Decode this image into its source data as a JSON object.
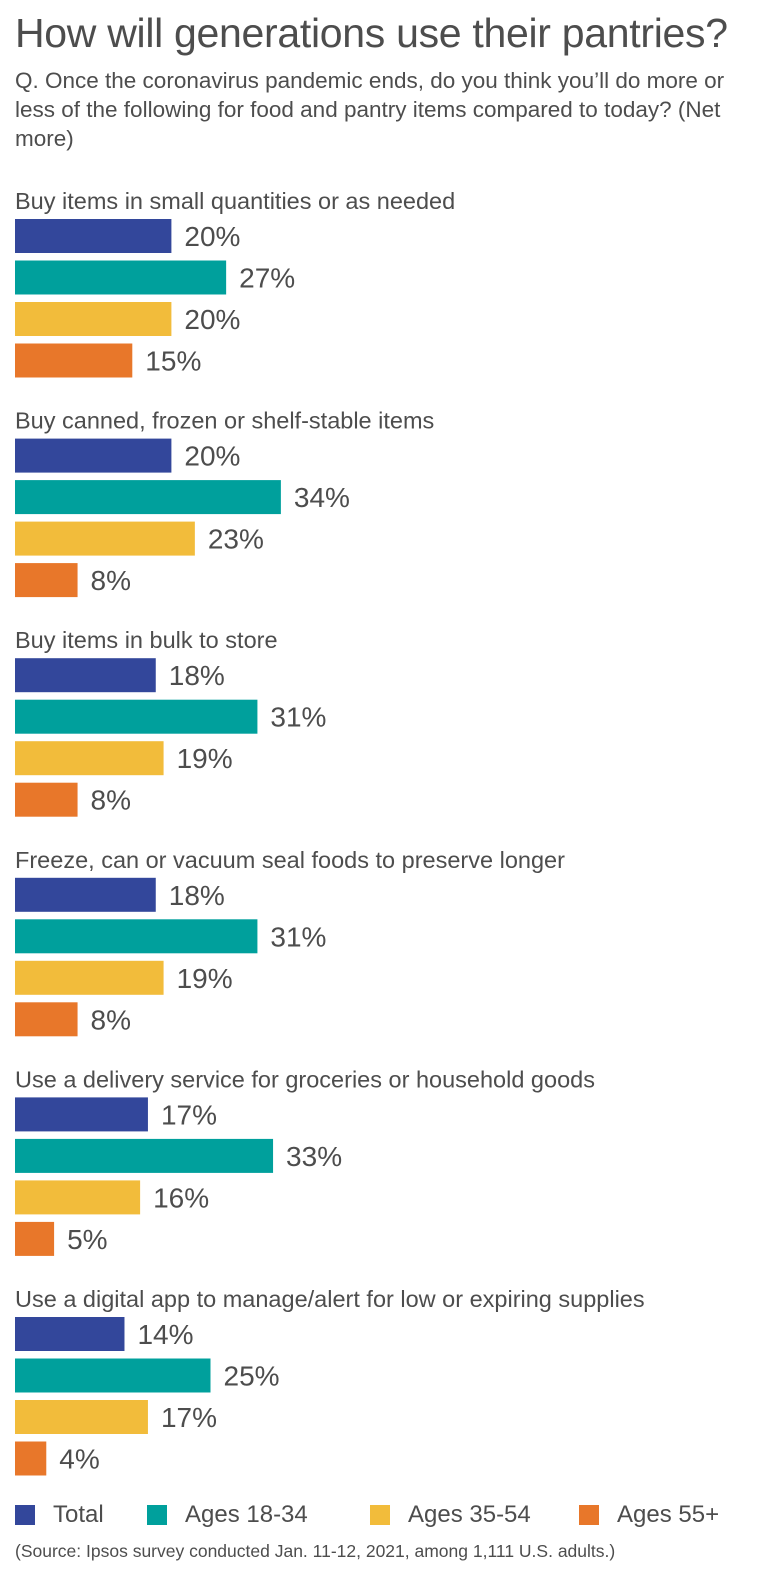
{
  "chart_data": {
    "type": "bar",
    "orientation": "horizontal",
    "title": "How will generations use their pantries?",
    "subtitle": "Q. Once the coronavirus pandemic ends, do you think you’ll do more or less of the following for food and pantry items compared to today? (Net more)",
    "categories": [
      "Buy items in small quantities or as needed",
      "Buy canned, frozen or shelf-stable items",
      "Buy items in bulk to store",
      "Freeze, can or vacuum seal foods to preserve longer",
      "Use a delivery service for groceries or household goods",
      "Use a digital app to manage/alert for low or expiring supplies"
    ],
    "series": [
      {
        "name": "Total",
        "color": "#33479b",
        "values": [
          20,
          20,
          18,
          18,
          17,
          14
        ]
      },
      {
        "name": "Ages 18-34",
        "color": "#00a09c",
        "values": [
          27,
          34,
          31,
          31,
          33,
          25
        ]
      },
      {
        "name": "Ages 35-54",
        "color": "#f2bc3b",
        "values": [
          20,
          23,
          19,
          19,
          16,
          17
        ]
      },
      {
        "name": "Ages 55+",
        "color": "#e8772a",
        "values": [
          15,
          8,
          8,
          8,
          5,
          4
        ]
      }
    ],
    "value_suffix": "%",
    "legend_position": "bottom",
    "grid": false
  },
  "source": "(Source: Ipsos survey conducted Jan. 11-12, 2021, among 1,111 U.S. adults.)"
}
